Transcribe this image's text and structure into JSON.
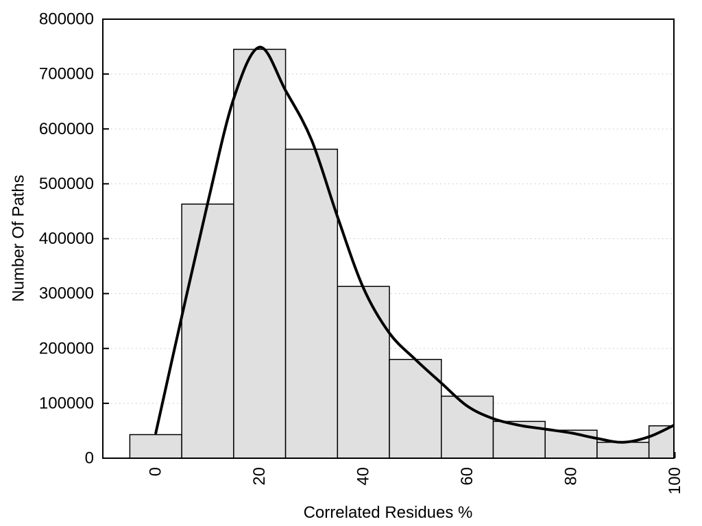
{
  "chart_data": {
    "type": "bar",
    "subtype": "histogram-with-smoothed-curve",
    "title": "",
    "xlabel": "Correlated Residues %",
    "ylabel": "Number Of Paths",
    "xlim": [
      -10.2,
      99.8
    ],
    "ylim": [
      0,
      800000
    ],
    "x_ticks": [
      0,
      20,
      40,
      60,
      80,
      100
    ],
    "y_ticks": [
      0,
      100000,
      200000,
      300000,
      400000,
      500000,
      600000,
      700000,
      800000
    ],
    "grid": "horizontal-dotted",
    "legend": "none",
    "bin_width": 10,
    "categories": [
      0,
      10,
      20,
      30,
      40,
      50,
      60,
      70,
      80,
      90,
      100
    ],
    "values": [
      43000,
      463000,
      745000,
      563000,
      313000,
      180000,
      113000,
      67000,
      51000,
      29000,
      59000
    ],
    "curve": {
      "name": "smoothed-frequency-curve",
      "x": [
        0,
        5,
        10,
        15,
        20,
        25,
        30,
        35,
        40,
        45,
        50,
        55,
        60,
        65,
        70,
        75,
        80,
        85,
        90,
        95,
        99.8
      ],
      "y": [
        46000,
        258000,
        465000,
        655000,
        749000,
        670000,
        580000,
        440000,
        310000,
        228000,
        180000,
        137000,
        95000,
        72000,
        60000,
        53000,
        46000,
        36000,
        29000,
        39000,
        60000
      ]
    },
    "colors": {
      "background": "#ffffff",
      "bar_fill": "#e0e0e0",
      "bar_border": "#000000",
      "curve": "#000000",
      "grid": "#bfbfbf",
      "axis": "#000000",
      "text": "#000000"
    }
  }
}
